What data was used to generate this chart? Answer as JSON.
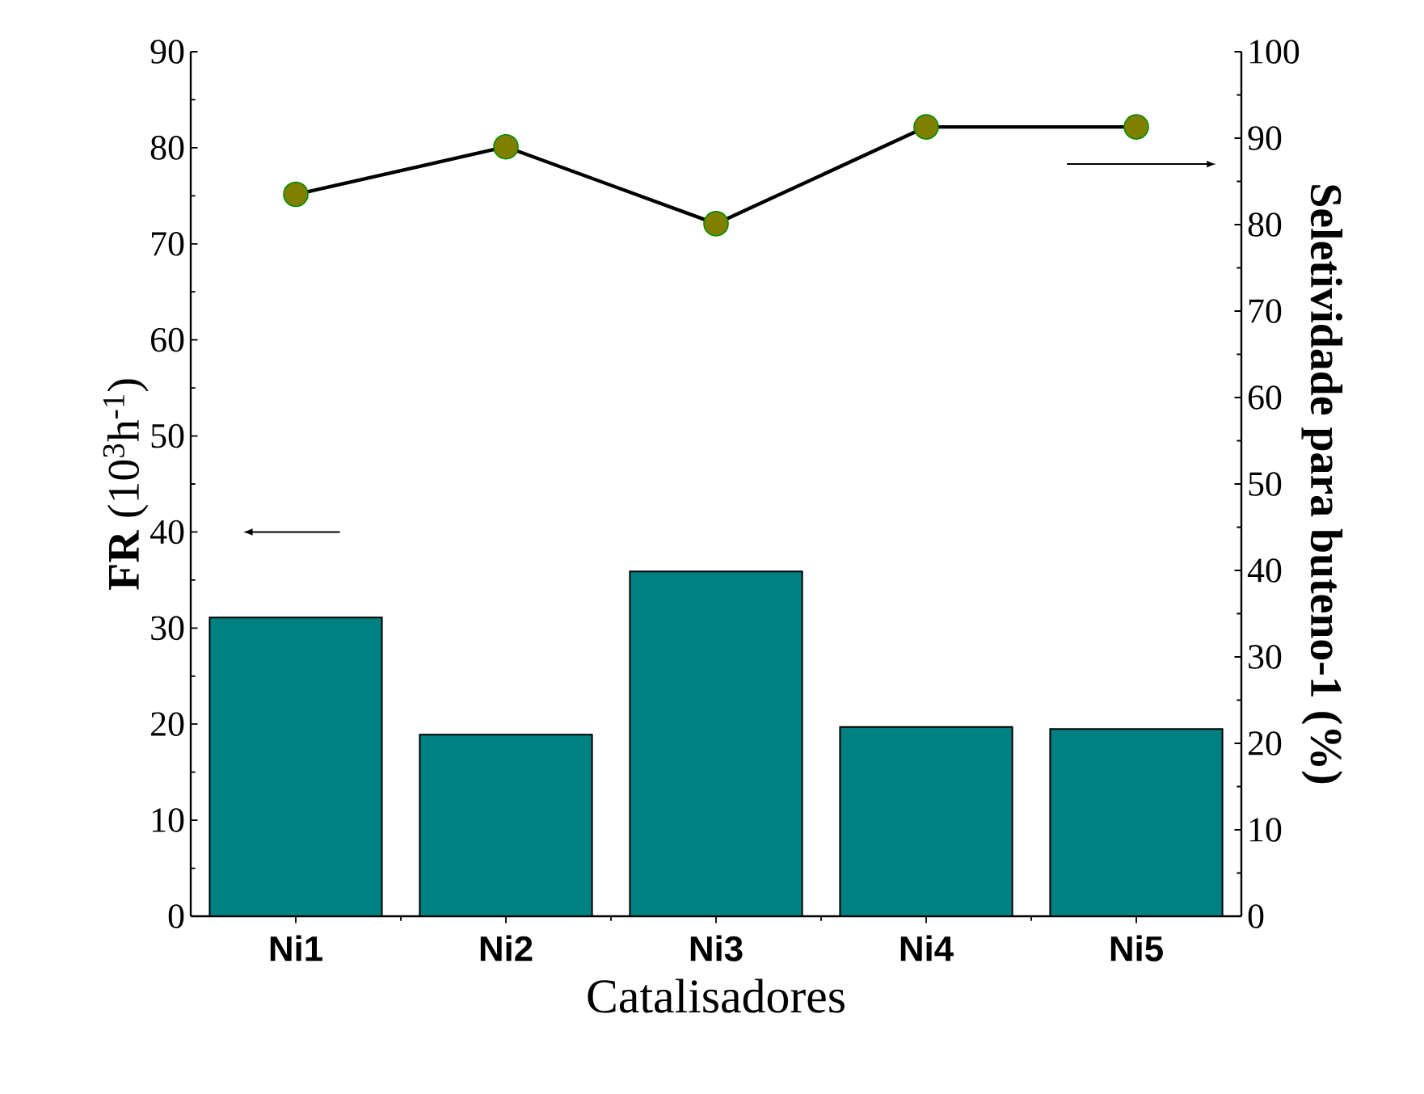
{
  "chart_data": {
    "type": "bar",
    "xlabel": "Catalisadores",
    "ylabel": "**FR** (10$^{3}$h$^{-1}$)",
    "y2label": "Seletividade para buteno-1 (%)",
    "categories": [
      "Ni1",
      "Ni2",
      "Ni3",
      "Ni4",
      "Ni5"
    ],
    "series": [
      {
        "color": "#008080",
        "values": [
          31.1,
          18.9,
          35.9,
          19.7,
          19.5
        ]
      },
      {
        "type": "line",
        "axis": "y2",
        "color": "#808000",
        "marker": "circle",
        "values": [
          83.5,
          89.0,
          80.1,
          91.3,
          91.3
        ]
      }
    ],
    "ylim": [
      0,
      90
    ],
    "yticks": [
      0,
      10,
      20,
      30,
      40,
      50,
      60,
      70,
      80,
      90
    ],
    "y2lim": [
      0,
      100
    ],
    "y2ticks": [
      0,
      10,
      20,
      30,
      40,
      50,
      60,
      70,
      80,
      90,
      100
    ]
  }
}
